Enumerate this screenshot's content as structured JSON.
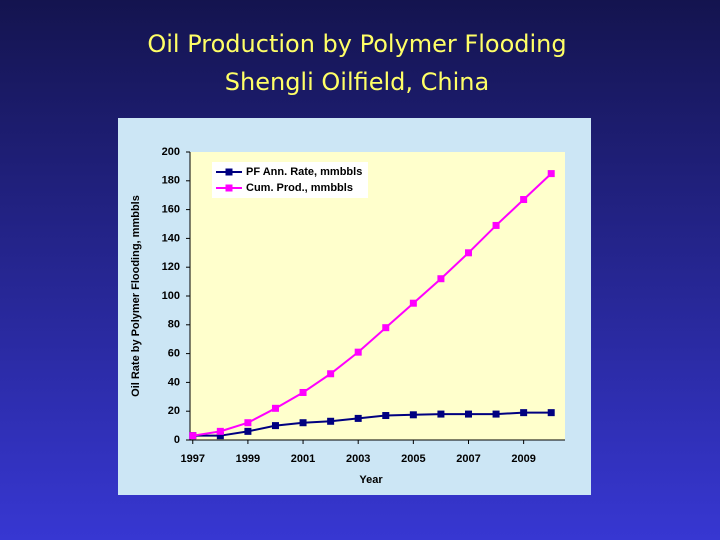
{
  "chart_data": {
    "type": "line",
    "title": "Oil Production by Polymer Flooding",
    "subtitle": "Shengli Oilfield, China",
    "x_label": "Year",
    "y_label": "Oil Rate by Polymer Flooding, mmbbls",
    "x": [
      1997,
      1998,
      1999,
      2000,
      2001,
      2002,
      2003,
      2004,
      2005,
      2006,
      2007,
      2008,
      2009,
      2010
    ],
    "series": [
      {
        "name": "PF Ann. Rate, mmbbls",
        "color": "#000080",
        "values": [
          3,
          3,
          6,
          10,
          12,
          13,
          15,
          17,
          17.5,
          18,
          18,
          18,
          19,
          19
        ]
      },
      {
        "name": "Cum. Prod., mmbbls",
        "color": "#ff00ff",
        "values": [
          3,
          6,
          12,
          22,
          33,
          46,
          61,
          78,
          95,
          112,
          130,
          149,
          167,
          185
        ]
      }
    ],
    "xlim": [
      1996.9,
      2010.5
    ],
    "xticks": [
      1997,
      1999,
      2001,
      2003,
      2005,
      2007,
      2009
    ],
    "ylim": [
      0,
      200
    ],
    "yticks": [
      0,
      20,
      40,
      60,
      80,
      100,
      120,
      140,
      160,
      180,
      200
    ],
    "grid": false,
    "legend": "upper-left"
  }
}
